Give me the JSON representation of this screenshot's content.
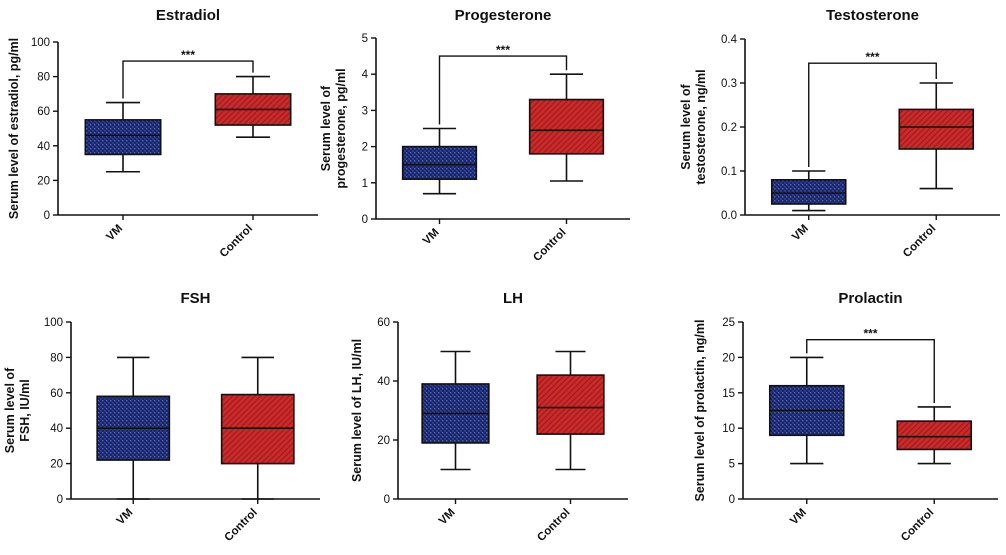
{
  "colors": {
    "vm_fill": "#2a3a8c",
    "control_fill": "#c92a2a",
    "axis": "#111111"
  },
  "chart_data": [
    {
      "type": "box",
      "title": "Estradiol",
      "ylabel": "Serum level of estradiol, pg/ml",
      "ylabel_lines": [
        "Serum level of estradiol, pg/ml"
      ],
      "ylim": [
        0,
        100
      ],
      "yticks": [
        "0",
        "20",
        "40",
        "60",
        "80",
        "100"
      ],
      "categories": [
        "VM",
        "Control"
      ],
      "boxes": [
        {
          "name": "VM",
          "min": 25,
          "q1": 35,
          "median": 46,
          "q3": 55,
          "max": 65,
          "pattern": "checker"
        },
        {
          "name": "Control",
          "min": 45,
          "q1": 52,
          "median": 61,
          "q3": 70,
          "max": 80,
          "pattern": "hatch"
        }
      ],
      "significance": {
        "label": "***",
        "y": 89
      }
    },
    {
      "type": "box",
      "title": "Progesterone",
      "ylabel": "Serum level of progesterone, pg/ml",
      "ylabel_lines": [
        "Serum level of",
        "progesterone, pg/ml"
      ],
      "ylim": [
        0,
        5
      ],
      "yticks": [
        "0",
        "1",
        "2",
        "3",
        "4",
        "5"
      ],
      "categories": [
        "VM",
        "Control"
      ],
      "boxes": [
        {
          "name": "VM",
          "min": 0.7,
          "q1": 1.1,
          "median": 1.5,
          "q3": 2.0,
          "max": 2.5,
          "pattern": "checker"
        },
        {
          "name": "Control",
          "min": 1.05,
          "q1": 1.8,
          "median": 2.45,
          "q3": 3.3,
          "max": 4.0,
          "pattern": "hatch"
        }
      ],
      "significance": {
        "label": "***",
        "y": 4.5
      }
    },
    {
      "type": "box",
      "title": "Testosterone",
      "ylabel": "Serum level of testosterone, ng/ml",
      "ylabel_lines": [
        "Serum level of",
        "testosterone, ng/ml"
      ],
      "ylim": [
        0,
        0.4
      ],
      "yticks": [
        "0.0",
        "0.1",
        "0.2",
        "0.3",
        "0.4"
      ],
      "categories": [
        "VM",
        "Control"
      ],
      "boxes": [
        {
          "name": "VM",
          "min": 0.01,
          "q1": 0.025,
          "median": 0.05,
          "q3": 0.08,
          "max": 0.1,
          "pattern": "checker"
        },
        {
          "name": "Control",
          "min": 0.06,
          "q1": 0.15,
          "median": 0.2,
          "q3": 0.24,
          "max": 0.3,
          "pattern": "hatch"
        }
      ],
      "significance": {
        "label": "***",
        "y": 0.345
      }
    },
    {
      "type": "box",
      "title": "FSH",
      "ylabel": "Serum level of FSH, IU/ml",
      "ylabel_lines": [
        "Serum level of",
        "FSH, IU/ml"
      ],
      "ylim": [
        0,
        100
      ],
      "yticks": [
        "0",
        "20",
        "40",
        "60",
        "80",
        "100"
      ],
      "categories": [
        "VM",
        "Control"
      ],
      "boxes": [
        {
          "name": "VM",
          "min": 0,
          "q1": 22,
          "median": 40,
          "q3": 58,
          "max": 80,
          "pattern": "checker"
        },
        {
          "name": "Control",
          "min": 0,
          "q1": 20,
          "median": 40,
          "q3": 59,
          "max": 80,
          "pattern": "hatch"
        }
      ],
      "significance": null
    },
    {
      "type": "box",
      "title": "LH",
      "ylabel": "Serum level of LH, IU/ml",
      "ylabel_lines": [
        "Serum level of LH, IU/ml"
      ],
      "ylim": [
        0,
        60
      ],
      "yticks": [
        "0",
        "20",
        "40",
        "60"
      ],
      "categories": [
        "VM",
        "Control"
      ],
      "boxes": [
        {
          "name": "VM",
          "min": 10,
          "q1": 19,
          "median": 29,
          "q3": 39,
          "max": 50,
          "pattern": "checker"
        },
        {
          "name": "Control",
          "min": 10,
          "q1": 22,
          "median": 31,
          "q3": 42,
          "max": 50,
          "pattern": "hatch"
        }
      ],
      "significance": null
    },
    {
      "type": "box",
      "title": "Prolactin",
      "ylabel": "Serum level of prolactin, ng/ml",
      "ylabel_lines": [
        "Serum level of prolactin, ng/ml"
      ],
      "ylim": [
        0,
        25
      ],
      "yticks": [
        "0",
        "5",
        "10",
        "15",
        "20",
        "25"
      ],
      "categories": [
        "VM",
        "Control"
      ],
      "boxes": [
        {
          "name": "VM",
          "min": 5,
          "q1": 9,
          "median": 12.5,
          "q3": 16,
          "max": 20,
          "pattern": "checker"
        },
        {
          "name": "Control",
          "min": 5,
          "q1": 7,
          "median": 8.8,
          "q3": 11,
          "max": 13,
          "pattern": "hatch"
        }
      ],
      "significance": {
        "label": "***",
        "y": 22.5
      }
    }
  ]
}
